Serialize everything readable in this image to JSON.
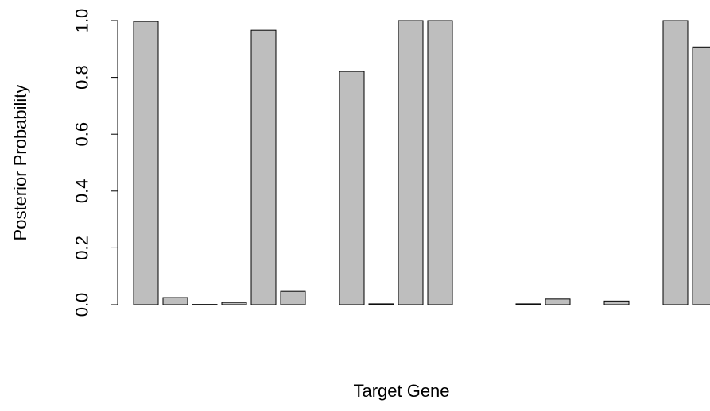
{
  "chart_data": {
    "type": "bar",
    "x_label": "Target Gene",
    "y_label": "Posterior Probability",
    "categories": [
      null,
      null,
      null,
      null,
      null,
      null,
      null,
      null,
      null,
      null,
      null,
      null,
      null,
      null,
      null,
      null,
      null,
      null,
      null,
      null
    ],
    "values": [
      0.997,
      0.025,
      0.001,
      0.008,
      0.966,
      0.047,
      0.0,
      0.821,
      0.003,
      1.0,
      1.0,
      0.0,
      0.0,
      0.003,
      0.02,
      0.0,
      0.013,
      0.0,
      1.0,
      0.907
    ],
    "color": "#bebebe",
    "ylim": [
      0,
      1
    ],
    "yticks": [
      {
        "value": 0,
        "label": "0.0"
      },
      0.2,
      0.4,
      0.6,
      0.8,
      {
        "value": 1,
        "label": "1.0"
      }
    ]
  }
}
